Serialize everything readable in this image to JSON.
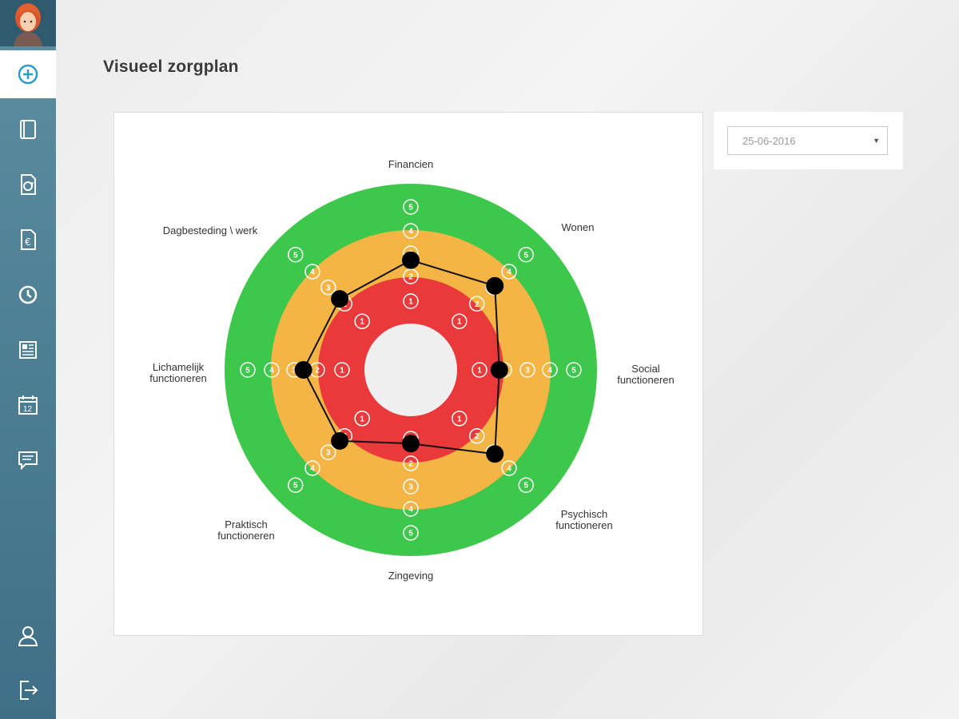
{
  "page": {
    "title": "Visueel zorgplan"
  },
  "sidebar": {
    "items": [
      {
        "name": "add",
        "icon": "plus-circle-icon"
      },
      {
        "name": "dossier",
        "icon": "book-icon"
      },
      {
        "name": "care-document",
        "icon": "document-cycle-icon"
      },
      {
        "name": "finance-document",
        "icon": "document-euro-icon"
      },
      {
        "name": "history",
        "icon": "clock-icon"
      },
      {
        "name": "news",
        "icon": "newspaper-icon"
      },
      {
        "name": "calendar",
        "icon": "calendar-icon",
        "day": "12"
      },
      {
        "name": "messages",
        "icon": "chat-icon"
      },
      {
        "name": "profile",
        "icon": "user-icon"
      },
      {
        "name": "logout",
        "icon": "logout-icon"
      }
    ]
  },
  "date_select": {
    "value": "25-06-2016"
  },
  "colors": {
    "green": "#3dc84c",
    "orange": "#f4b544",
    "red": "#e9393a",
    "center": "#efefef",
    "accent": "#2a9cc8"
  },
  "chart_data": {
    "type": "radar",
    "scale": [
      1,
      2,
      3,
      4,
      5
    ],
    "axes": [
      {
        "label": "Financien",
        "value": 2.7
      },
      {
        "label": "Wonen",
        "value": 3.1
      },
      {
        "label": "Social functioneren",
        "value": 1.8
      },
      {
        "label": "Psychisch functioneren",
        "value": 3.1
      },
      {
        "label": "Zingeving",
        "value": 1.2
      },
      {
        "label": "Praktisch functioneren",
        "value": 2.3
      },
      {
        "label": "Lichamelijk functioneren",
        "value": 2.6
      },
      {
        "label": "Dagbesteding \\ werk",
        "value": 2.3
      }
    ]
  }
}
